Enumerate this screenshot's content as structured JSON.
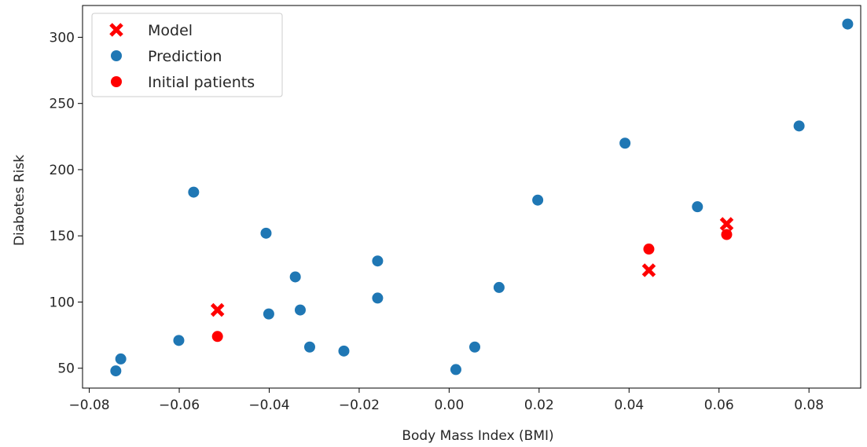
{
  "chart_data": {
    "type": "scatter",
    "title": "",
    "xlabel": "Body Mass Index (BMI)",
    "ylabel": "Diabetes Risk",
    "xlim": [
      -0.0815,
      0.0915
    ],
    "ylim": [
      35.0,
      324.0
    ],
    "xticks": [
      -0.08,
      -0.06,
      -0.04,
      -0.02,
      0.0,
      0.02,
      0.04,
      0.06,
      0.08
    ],
    "xtick_labels": [
      "−0.08",
      "−0.06",
      "−0.04",
      "−0.02",
      "0.00",
      "0.02",
      "0.04",
      "0.06",
      "0.08"
    ],
    "yticks": [
      50,
      100,
      150,
      200,
      250,
      300
    ],
    "ytick_labels": [
      "50",
      "100",
      "150",
      "200",
      "250",
      "300"
    ],
    "grid": false,
    "legend_position": "upper-left",
    "series": [
      {
        "name": "Model",
        "marker": "x",
        "color": "#ff0000",
        "x": [
          -0.0515,
          0.0444,
          0.0617
        ],
        "y": [
          94,
          124,
          159
        ]
      },
      {
        "name": "Prediction",
        "marker": "circle",
        "color": "#1f77b4",
        "x": [
          -0.0741,
          -0.073,
          -0.0601,
          -0.0568,
          -0.0407,
          -0.0401,
          -0.0342,
          -0.0331,
          -0.031,
          -0.0234,
          -0.0159,
          -0.0159,
          0.0015,
          0.0057,
          0.0111,
          0.0197,
          0.0391,
          0.0552,
          0.0778,
          0.0886
        ],
        "y": [
          48,
          57,
          71,
          183,
          152,
          91,
          119,
          94,
          66,
          63,
          131,
          103,
          49,
          66,
          111,
          177,
          220,
          172,
          233,
          310
        ]
      },
      {
        "name": "Initial patients",
        "marker": "circle",
        "color": "#ff0000",
        "x": [
          -0.0515,
          0.0444,
          0.0617
        ],
        "y": [
          74,
          140,
          151
        ]
      }
    ]
  }
}
